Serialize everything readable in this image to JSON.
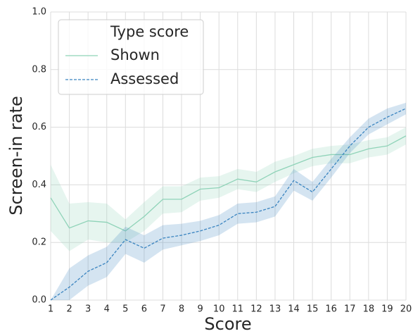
{
  "chart_data": {
    "type": "line",
    "x_label": "Score",
    "y_label": "Screen-in rate",
    "legend_title": "Type score",
    "legend": "upper left",
    "grid": true,
    "x": [
      1,
      2,
      3,
      4,
      5,
      6,
      7,
      8,
      9,
      10,
      11,
      12,
      13,
      14,
      15,
      16,
      17,
      18,
      19,
      20
    ],
    "xlim": [
      1,
      20
    ],
    "xticks": [
      1,
      2,
      3,
      4,
      5,
      6,
      7,
      8,
      9,
      10,
      11,
      12,
      13,
      14,
      15,
      16,
      17,
      18,
      19,
      20
    ],
    "ylim": [
      0,
      1
    ],
    "yticks": [
      {
        "value": 0,
        "label": "0.0"
      },
      0.2,
      0.4,
      0.6,
      0.8,
      {
        "value": 1,
        "label": "1.0"
      }
    ],
    "series": [
      {
        "name": "Shown",
        "color": "#8fd3b8",
        "dash": false,
        "values": [
          0.355,
          0.25,
          0.275,
          0.27,
          0.24,
          0.29,
          0.35,
          0.35,
          0.385,
          0.39,
          0.42,
          0.41,
          0.445,
          0.47,
          0.495,
          0.505,
          0.505,
          0.525,
          0.535,
          0.57
        ],
        "lower": [
          0.24,
          0.17,
          0.21,
          0.2,
          0.2,
          0.24,
          0.3,
          0.305,
          0.345,
          0.355,
          0.385,
          0.375,
          0.41,
          0.44,
          0.465,
          0.475,
          0.475,
          0.495,
          0.505,
          0.54
        ],
        "upper": [
          0.47,
          0.335,
          0.34,
          0.335,
          0.28,
          0.34,
          0.395,
          0.395,
          0.425,
          0.43,
          0.455,
          0.445,
          0.48,
          0.5,
          0.525,
          0.535,
          0.54,
          0.555,
          0.565,
          0.6
        ]
      },
      {
        "name": "Assessed",
        "color": "#3a84c0",
        "dash": true,
        "values": [
          0,
          0.045,
          0.1,
          0.13,
          0.21,
          0.18,
          0.215,
          0.225,
          0.24,
          0.26,
          0.3,
          0.305,
          0.325,
          0.415,
          0.375,
          0.455,
          0.535,
          0.6,
          0.635,
          0.665
        ],
        "lower": [
          0,
          0,
          0.05,
          0.08,
          0.16,
          0.13,
          0.175,
          0.19,
          0.205,
          0.225,
          0.265,
          0.27,
          0.29,
          0.38,
          0.345,
          0.425,
          0.51,
          0.575,
          0.61,
          0.645
        ],
        "upper": [
          0,
          0.11,
          0.155,
          0.185,
          0.255,
          0.225,
          0.26,
          0.265,
          0.275,
          0.295,
          0.335,
          0.34,
          0.36,
          0.455,
          0.41,
          0.49,
          0.565,
          0.63,
          0.665,
          0.685
        ]
      }
    ]
  }
}
